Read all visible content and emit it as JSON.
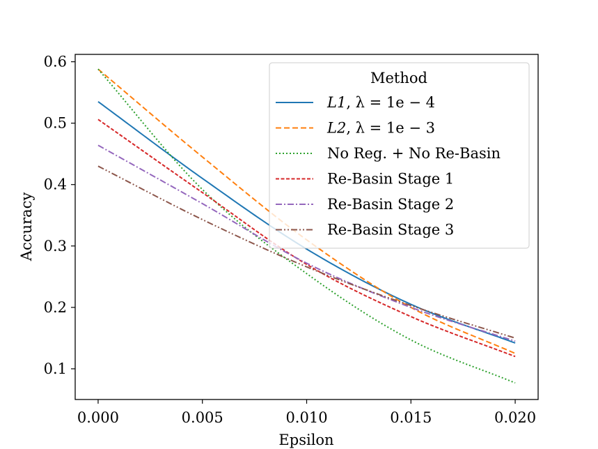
{
  "chart_data": {
    "type": "line",
    "title": "",
    "xlabel": "Epsilon",
    "ylabel": "Accuracy",
    "xlim": [
      -0.0011,
      0.0211
    ],
    "ylim": [
      0.05,
      0.612
    ],
    "x_ticks": [
      0.0,
      0.005,
      0.01,
      0.015,
      0.02
    ],
    "x_tick_labels": [
      "0.000",
      "0.005",
      "0.010",
      "0.015",
      "0.020"
    ],
    "y_ticks": [
      0.1,
      0.2,
      0.3,
      0.4,
      0.5,
      0.6
    ],
    "y_tick_labels": [
      "0.1",
      "0.2",
      "0.3",
      "0.4",
      "0.5",
      "0.6"
    ],
    "legend": {
      "title": "Method",
      "placement": "top-right"
    },
    "x": [
      0.0,
      0.005,
      0.01,
      0.015,
      0.02
    ],
    "series": [
      {
        "name": "L1, λ = 1e − 4",
        "name_parts": [
          "L1",
          ", λ = 1e − 4"
        ],
        "color": "#1f77b4",
        "dash": "solid",
        "values": [
          0.535,
          0.41,
          0.295,
          0.205,
          0.142
        ]
      },
      {
        "name": "L2, λ = 1e − 3",
        "name_parts": [
          "L2",
          ", λ = 1e − 3"
        ],
        "color": "#ff7f0e",
        "dash": "dashed",
        "values": [
          0.588,
          0.445,
          0.31,
          0.2,
          0.125
        ]
      },
      {
        "name": "No Reg. + No Re-Basin",
        "color": "#2ca02c",
        "dash": "dotted",
        "values": [
          0.588,
          0.392,
          0.255,
          0.147,
          0.077
        ]
      },
      {
        "name": "Re-Basin Stage 1",
        "color": "#d62728",
        "dash": "densely-dashed",
        "values": [
          0.506,
          0.387,
          0.27,
          0.185,
          0.12
        ]
      },
      {
        "name": "Re-Basin Stage 2",
        "color": "#9467bd",
        "dash": "dashdot",
        "values": [
          0.464,
          0.369,
          0.272,
          0.2,
          0.145
        ]
      },
      {
        "name": "Re-Basin Stage 3",
        "color": "#8c564b",
        "dash": "dashdotdot",
        "values": [
          0.43,
          0.343,
          0.266,
          0.203,
          0.15
        ]
      }
    ]
  }
}
